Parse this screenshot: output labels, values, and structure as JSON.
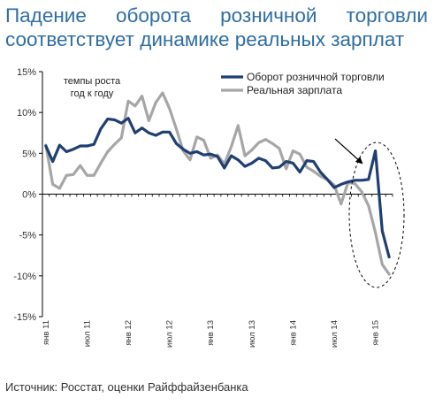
{
  "title_lines": [
    "Падение оборота розничной торговли",
    "соответствует динамике реальных зарплат"
  ],
  "source": "Источник: Росстат, оценки Райффайзенбанка",
  "colors": {
    "title": "#2e6da4",
    "turnover": "#1f3f73",
    "wages": "#a6a6a6"
  },
  "chart_data": {
    "type": "line",
    "ylim": [
      -15,
      15
    ],
    "yticks": [
      15,
      10,
      5,
      0,
      -5,
      -10,
      -15
    ],
    "ytick_labels": [
      "15%",
      "10%",
      "5%",
      "0%",
      "-5%",
      "-10%",
      "-15%"
    ],
    "xtick_labels": [
      {
        "index": 0,
        "label": "янв 11"
      },
      {
        "index": 6,
        "label": "июл 11"
      },
      {
        "index": 12,
        "label": "янв 12"
      },
      {
        "index": 18,
        "label": "июл 12"
      },
      {
        "index": 24,
        "label": "янв 13"
      },
      {
        "index": 30,
        "label": "июл 13"
      },
      {
        "index": 36,
        "label": "янв 14"
      },
      {
        "index": 42,
        "label": "июл 14"
      },
      {
        "index": 48,
        "label": "янв 15"
      }
    ],
    "annotation": [
      "темпы роста",
      "год к году"
    ],
    "series": [
      {
        "name": "Оборот розничной торговли",
        "values": [
          5.9,
          4.0,
          6.0,
          5.2,
          5.5,
          5.9,
          5.9,
          6.1,
          8.0,
          9.2,
          9.1,
          8.7,
          9.3,
          7.5,
          8.1,
          7.5,
          7.2,
          7.6,
          7.6,
          6.2,
          5.5,
          5.0,
          5.2,
          4.8,
          4.9,
          4.6,
          3.2,
          4.7,
          4.2,
          3.4,
          3.8,
          4.4,
          4.1,
          3.2,
          3.3,
          4.0,
          3.8,
          2.7,
          4.1,
          4.0,
          2.7,
          1.8,
          0.8,
          1.2,
          1.5,
          1.7,
          1.7,
          1.8,
          5.3,
          -4.5,
          -7.7
        ]
      },
      {
        "name": "Реальная зарплата",
        "values": [
          6.0,
          1.2,
          0.7,
          2.3,
          2.4,
          3.5,
          2.3,
          2.3,
          3.8,
          5.2,
          6.1,
          6.9,
          11.4,
          10.8,
          12.0,
          9.0,
          11.2,
          12.4,
          10.5,
          8.0,
          5.3,
          4.2,
          7.0,
          6.6,
          4.4,
          4.8,
          3.7,
          5.8,
          8.4,
          4.7,
          5.4,
          6.3,
          6.7,
          6.2,
          5.6,
          3.1,
          5.3,
          4.9,
          3.3,
          2.8,
          2.2,
          1.8,
          1.1,
          -1.2,
          1.4,
          1.3,
          0.3,
          -1.4,
          -4.7,
          -8.6,
          -9.8
        ]
      }
    ]
  }
}
